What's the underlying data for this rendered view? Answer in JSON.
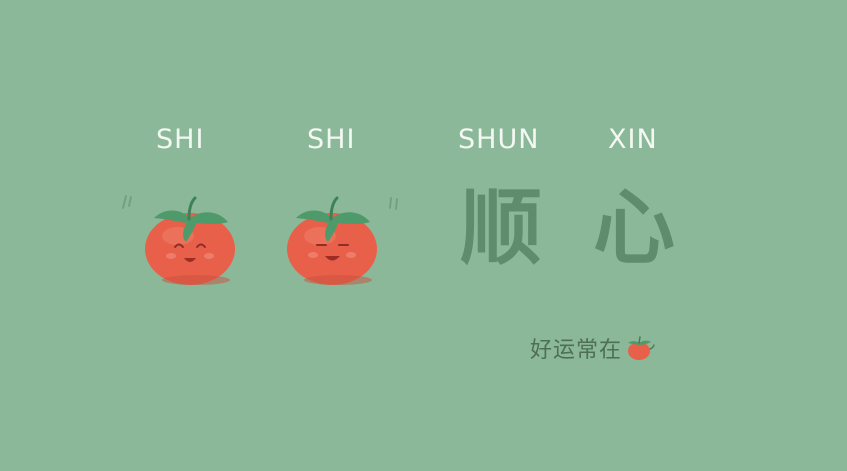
{
  "pinyin": [
    "SHI",
    "SHI",
    "SHUN",
    "XIN"
  ],
  "characters": [
    "顺",
    "心"
  ],
  "slogan": "好运常在",
  "colors": {
    "background": "#8ab898",
    "pinyin_text": "#f4f8f3",
    "characters": "#5f8c6c",
    "tomato": "#e8604a",
    "tomato_leaf": "#4f9a6a",
    "slogan_text": "#4f6f55"
  },
  "icons": {
    "first_tomato": "smiling-tomato-icon",
    "second_tomato": "smiling-tomato-icon",
    "slogan_tomato": "mini-tomato-icon"
  }
}
